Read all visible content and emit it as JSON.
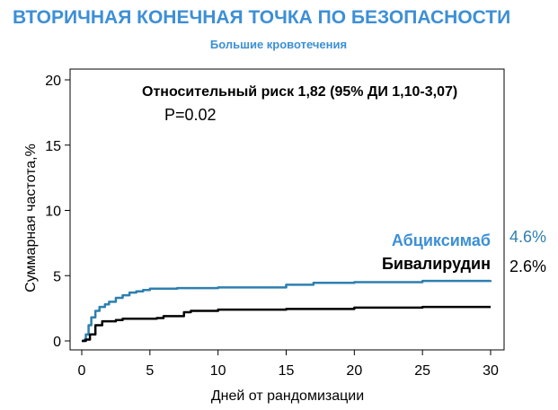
{
  "chart_data": {
    "type": "line",
    "title": "ВТОРИЧНАЯ КОНЕЧНАЯ ТОЧКА ПО БЕЗОПАСНОСТИ",
    "subtitle": "Большие кровотечения",
    "xlabel": "Дней от рандомизации",
    "ylabel": "Суммарная частота,%",
    "xlim": [
      0,
      30
    ],
    "ylim": [
      0,
      20
    ],
    "x_ticks": [
      0,
      5,
      10,
      15,
      20,
      25,
      30
    ],
    "y_ticks": [
      0,
      5,
      10,
      15,
      20
    ],
    "grid": false,
    "annotations": {
      "relative_risk": "Относительный риск 1,82 (95% ДИ 1,10-3,07)",
      "p_value": "P=0.02"
    },
    "colors": {
      "title": "#3d8fd6",
      "abciximab": "#2e7fb0",
      "bivalirudin": "#000000"
    },
    "series": [
      {
        "name": "Абциксимаб",
        "end_label": "4.6%",
        "points": [
          [
            0,
            0
          ],
          [
            0.2,
            0.1
          ],
          [
            0.3,
            0.5
          ],
          [
            0.5,
            1.2
          ],
          [
            0.7,
            1.8
          ],
          [
            1,
            2.3
          ],
          [
            1.3,
            2.6
          ],
          [
            1.7,
            2.8
          ],
          [
            2,
            3.0
          ],
          [
            2.5,
            3.3
          ],
          [
            3,
            3.5
          ],
          [
            3.5,
            3.7
          ],
          [
            4,
            3.8
          ],
          [
            4.5,
            3.9
          ],
          [
            5,
            4.0
          ],
          [
            7,
            4.05
          ],
          [
            10,
            4.1
          ],
          [
            15,
            4.3
          ],
          [
            17,
            4.45
          ],
          [
            20,
            4.5
          ],
          [
            25,
            4.6
          ],
          [
            30,
            4.65
          ]
        ]
      },
      {
        "name": "Бивалирудин",
        "end_label": "2.6%",
        "points": [
          [
            0,
            0
          ],
          [
            0.3,
            0.1
          ],
          [
            0.6,
            0.5
          ],
          [
            1,
            1.2
          ],
          [
            1.5,
            1.5
          ],
          [
            2.5,
            1.6
          ],
          [
            3,
            1.7
          ],
          [
            5.5,
            1.75
          ],
          [
            6,
            1.9
          ],
          [
            7.5,
            2.2
          ],
          [
            8,
            2.3
          ],
          [
            10,
            2.4
          ],
          [
            15,
            2.45
          ],
          [
            20,
            2.55
          ],
          [
            25,
            2.6
          ],
          [
            30,
            2.6
          ]
        ]
      }
    ]
  }
}
